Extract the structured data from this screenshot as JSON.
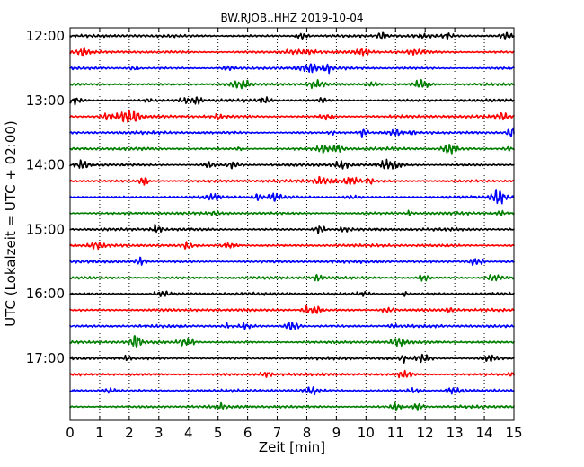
{
  "chart_data": {
    "type": "line",
    "title": "BW.RJOB..HHZ 2019-10-04",
    "xlabel": "Zeit  [min]",
    "ylabel": "UTC (Lokalzeit = UTC + 02:00)",
    "xlim": [
      0,
      15
    ],
    "x_ticks": [
      0,
      1,
      2,
      3,
      4,
      5,
      6,
      7,
      8,
      9,
      10,
      11,
      12,
      13,
      14,
      15
    ],
    "x_tick_labels": [
      "0",
      "1",
      "2",
      "3",
      "4",
      "5",
      "6",
      "7",
      "8",
      "9",
      "10",
      "11",
      "12",
      "13",
      "14",
      "15"
    ],
    "y_tick_labels": [
      "12:00",
      "13:00",
      "14:00",
      "15:00",
      "16:00",
      "17:00"
    ],
    "trace_start_times": [
      "12:00",
      "12:15",
      "12:30",
      "12:45",
      "13:00",
      "13:15",
      "13:30",
      "13:45",
      "14:00",
      "14:15",
      "14:30",
      "14:45",
      "15:00",
      "15:15",
      "15:30",
      "15:45",
      "16:00",
      "16:15",
      "16:30",
      "16:45",
      "17:00",
      "17:15",
      "17:30",
      "17:45"
    ],
    "trace_colors": [
      "#000000",
      "#ff0000",
      "#0000ff",
      "#007f00"
    ],
    "grid": true,
    "grid_style": "dotted"
  }
}
